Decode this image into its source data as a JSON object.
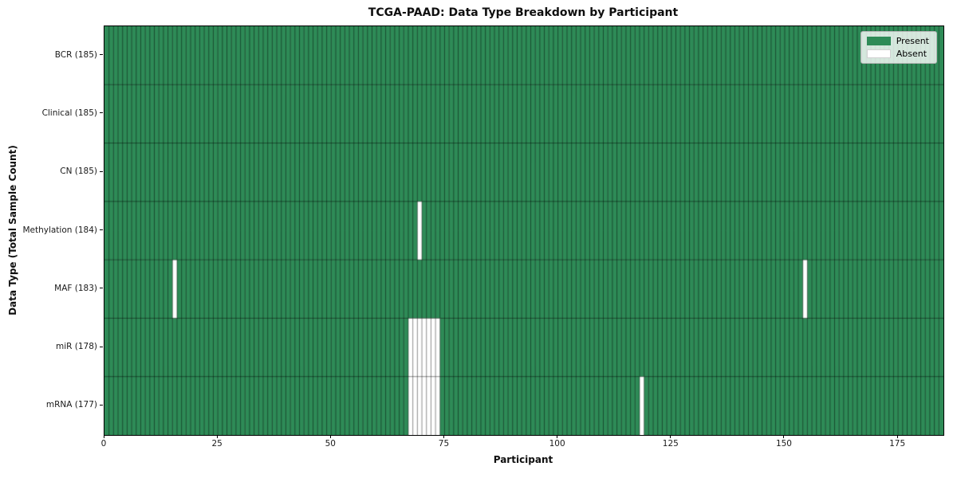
{
  "chart_data": {
    "type": "heatmap",
    "title": "TCGA-PAAD: Data Type Breakdown by Participant",
    "xlabel": "Participant",
    "ylabel": "Data Type (Total Sample Count)",
    "n_participants": 185,
    "x_range": [
      0,
      185
    ],
    "x_ticks": [
      0,
      25,
      50,
      75,
      100,
      125,
      150,
      175
    ],
    "grid": true,
    "legend": {
      "position": "upper right",
      "entries": [
        {
          "label": "Present",
          "color": "#2e8b57",
          "swatch_border": "none"
        },
        {
          "label": "Absent",
          "color": "#ffffff",
          "swatch_border": "1px solid rgba(0,0,0,0.18)"
        }
      ]
    },
    "rows": [
      {
        "label": "BCR (185)",
        "data_type": "BCR",
        "total_samples": 185,
        "absent_participants": []
      },
      {
        "label": "Clinical (185)",
        "data_type": "Clinical",
        "total_samples": 185,
        "absent_participants": []
      },
      {
        "label": "CN (185)",
        "data_type": "CN",
        "total_samples": 185,
        "absent_participants": []
      },
      {
        "label": "Methylation (184)",
        "data_type": "Methylation",
        "total_samples": 184,
        "absent_participants": [
          69
        ]
      },
      {
        "label": "MAF (183)",
        "data_type": "MAF",
        "total_samples": 183,
        "absent_participants": [
          15,
          154
        ]
      },
      {
        "label": "miR (178)",
        "data_type": "miR",
        "total_samples": 178,
        "absent_participants": [
          67,
          68,
          69,
          70,
          71,
          72,
          73
        ]
      },
      {
        "label": "mRNA (177)",
        "data_type": "mRNA",
        "total_samples": 177,
        "absent_participants": [
          67,
          68,
          69,
          70,
          71,
          72,
          73,
          118
        ]
      }
    ],
    "colors": {
      "present": "#2e8b57",
      "absent": "#ffffff",
      "cell_edge": "rgba(0,0,0,0.5)",
      "spine": "#000000"
    }
  }
}
